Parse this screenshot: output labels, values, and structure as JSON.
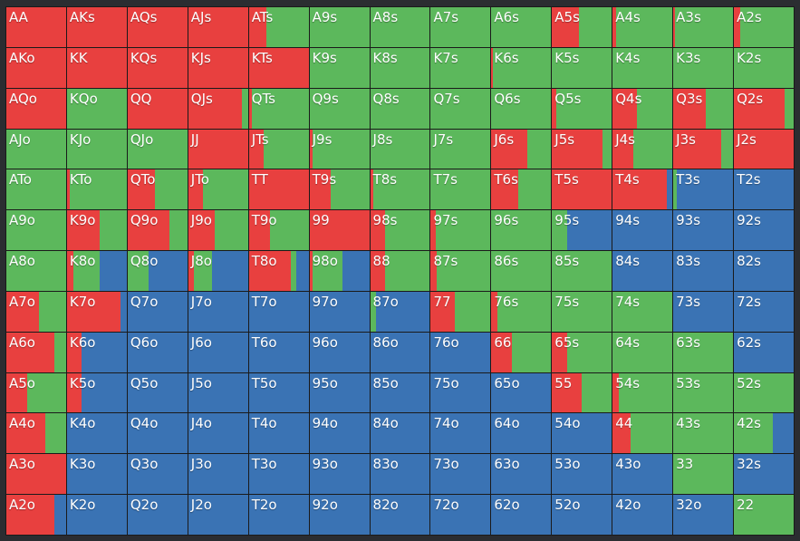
{
  "colors": {
    "raise": "#e8403f",
    "call": "#5cb85c",
    "fold": "#3a73b4"
  },
  "rows": [
    [
      [
        "AA",
        1,
        0,
        0
      ],
      [
        "AKs",
        1,
        0,
        0
      ],
      [
        "AQs",
        1,
        0,
        0
      ],
      [
        "AJs",
        1,
        0,
        0
      ],
      [
        "ATs",
        0.3,
        0.7,
        0
      ],
      [
        "A9s",
        0,
        1,
        0
      ],
      [
        "A8s",
        0,
        1,
        0
      ],
      [
        "A7s",
        0,
        1,
        0
      ],
      [
        "A6s",
        0,
        1,
        0
      ],
      [
        "A5s",
        0.45,
        0.55,
        0
      ],
      [
        "A4s",
        0.05,
        0.95,
        0
      ],
      [
        "A3s",
        0.03,
        0.97,
        0
      ],
      [
        "A2s",
        0.1,
        0.9,
        0
      ]
    ],
    [
      [
        "AKo",
        1,
        0,
        0
      ],
      [
        "KK",
        1,
        0,
        0
      ],
      [
        "KQs",
        1,
        0,
        0
      ],
      [
        "KJs",
        1,
        0,
        0
      ],
      [
        "KTs",
        1,
        0,
        0
      ],
      [
        "K9s",
        0,
        1,
        0
      ],
      [
        "K8s",
        0,
        1,
        0
      ],
      [
        "K7s",
        0,
        1,
        0
      ],
      [
        "K6s",
        0.03,
        0.97,
        0
      ],
      [
        "K5s",
        0,
        1,
        0
      ],
      [
        "K4s",
        0,
        1,
        0
      ],
      [
        "K3s",
        0,
        1,
        0
      ],
      [
        "K2s",
        0,
        1,
        0
      ]
    ],
    [
      [
        "AQo",
        1,
        0,
        0
      ],
      [
        "KQo",
        0,
        1,
        0
      ],
      [
        "QQ",
        1,
        0,
        0
      ],
      [
        "QJs",
        0.9,
        0.1,
        0
      ],
      [
        "QTs",
        0.05,
        0.95,
        0
      ],
      [
        "Q9s",
        0,
        1,
        0
      ],
      [
        "Q8s",
        0,
        1,
        0
      ],
      [
        "Q7s",
        0,
        1,
        0
      ],
      [
        "Q6s",
        0,
        1,
        0
      ],
      [
        "Q5s",
        0.07,
        0.93,
        0
      ],
      [
        "Q4s",
        0.4,
        0.6,
        0
      ],
      [
        "Q3s",
        0.55,
        0.45,
        0
      ],
      [
        "Q2s",
        0.85,
        0.15,
        0
      ]
    ],
    [
      [
        "AJo",
        0,
        1,
        0
      ],
      [
        "KJo",
        0,
        1,
        0
      ],
      [
        "QJo",
        0,
        1,
        0
      ],
      [
        "JJ",
        1,
        0,
        0
      ],
      [
        "JTs",
        0.25,
        0.75,
        0
      ],
      [
        "J9s",
        0.05,
        0.95,
        0
      ],
      [
        "J8s",
        0,
        1,
        0
      ],
      [
        "J7s",
        0,
        1,
        0
      ],
      [
        "J6s",
        0.6,
        0.4,
        0
      ],
      [
        "J5s",
        0.85,
        0.15,
        0
      ],
      [
        "J4s",
        0.35,
        0.65,
        0
      ],
      [
        "J3s",
        0.8,
        0.2,
        0
      ],
      [
        "J2s",
        1,
        0,
        0
      ]
    ],
    [
      [
        "ATo",
        0,
        1,
        0
      ],
      [
        "KTo",
        0.05,
        0.95,
        0
      ],
      [
        "QTo",
        0.45,
        0.55,
        0
      ],
      [
        "JTo",
        0.25,
        0.75,
        0
      ],
      [
        "TT",
        1,
        0,
        0
      ],
      [
        "T9s",
        0.35,
        0.65,
        0
      ],
      [
        "T8s",
        0.05,
        0.95,
        0
      ],
      [
        "T7s",
        0,
        1,
        0
      ],
      [
        "T6s",
        0.45,
        0.55,
        0
      ],
      [
        "T5s",
        1,
        0,
        0
      ],
      [
        "T4s",
        0.9,
        0,
        0.1
      ],
      [
        "T3s",
        0,
        0.06,
        0.94
      ],
      [
        "T2s",
        0,
        0,
        1
      ]
    ],
    [
      [
        "A9o",
        0,
        1,
        0
      ],
      [
        "K9o",
        0.55,
        0.45,
        0
      ],
      [
        "Q9o",
        0.7,
        0.3,
        0
      ],
      [
        "J9o",
        0.45,
        0.55,
        0
      ],
      [
        "T9o",
        0.35,
        0.65,
        0
      ],
      [
        "99",
        1,
        0,
        0
      ],
      [
        "98s",
        0.25,
        0.75,
        0
      ],
      [
        "97s",
        0.08,
        0.92,
        0
      ],
      [
        "96s",
        0,
        1,
        0
      ],
      [
        "95s",
        0,
        0.25,
        0.75
      ],
      [
        "94s",
        0,
        0,
        1
      ],
      [
        "93s",
        0,
        0,
        1
      ],
      [
        "92s",
        0,
        0,
        1
      ]
    ],
    [
      [
        "A8o",
        0,
        1,
        0
      ],
      [
        "K8o",
        0.1,
        0.45,
        0.45
      ],
      [
        "Q8o",
        0,
        0.35,
        0.65
      ],
      [
        "J8o",
        0.1,
        0.3,
        0.6
      ],
      [
        "T8o",
        0.7,
        0.1,
        0.2
      ],
      [
        "98o",
        0.05,
        0.5,
        0.45
      ],
      [
        "88",
        0.25,
        0.75,
        0
      ],
      [
        "87s",
        0.1,
        0.9,
        0
      ],
      [
        "86s",
        0,
        1,
        0
      ],
      [
        "85s",
        0,
        1,
        0
      ],
      [
        "84s",
        0,
        0,
        1
      ],
      [
        "83s",
        0,
        0,
        1
      ],
      [
        "82s",
        0,
        0,
        1
      ]
    ],
    [
      [
        "A7o",
        0.55,
        0.45,
        0
      ],
      [
        "K7o",
        0.9,
        0,
        0.1
      ],
      [
        "Q7o",
        0,
        0,
        1
      ],
      [
        "J7o",
        0,
        0,
        1
      ],
      [
        "T7o",
        0,
        0,
        1
      ],
      [
        "97o",
        0,
        0,
        1
      ],
      [
        "87o",
        0,
        0.1,
        0.9
      ],
      [
        "77",
        0.4,
        0.6,
        0
      ],
      [
        "76s",
        0.1,
        0.9,
        0
      ],
      [
        "75s",
        0,
        1,
        0
      ],
      [
        "74s",
        0,
        1,
        0
      ],
      [
        "73s",
        0,
        0,
        1
      ],
      [
        "72s",
        0,
        0,
        1
      ]
    ],
    [
      [
        "A6o",
        0.8,
        0.2,
        0
      ],
      [
        "K6o",
        0.25,
        0,
        0.75
      ],
      [
        "Q6o",
        0,
        0,
        1
      ],
      [
        "J6o",
        0,
        0,
        1
      ],
      [
        "T6o",
        0,
        0,
        1
      ],
      [
        "96o",
        0,
        0,
        1
      ],
      [
        "86o",
        0,
        0,
        1
      ],
      [
        "76o",
        0,
        0,
        1
      ],
      [
        "66",
        0.35,
        0.65,
        0
      ],
      [
        "65s",
        0.25,
        0.75,
        0
      ],
      [
        "64s",
        0,
        1,
        0
      ],
      [
        "63s",
        0,
        1,
        0
      ],
      [
        "62s",
        0,
        0,
        1
      ]
    ],
    [
      [
        "A5o",
        0.35,
        0.65,
        0
      ],
      [
        "K5o",
        0.25,
        0,
        0.75
      ],
      [
        "Q5o",
        0,
        0,
        1
      ],
      [
        "J5o",
        0,
        0,
        1
      ],
      [
        "T5o",
        0,
        0,
        1
      ],
      [
        "95o",
        0,
        0,
        1
      ],
      [
        "85o",
        0,
        0,
        1
      ],
      [
        "75o",
        0,
        0,
        1
      ],
      [
        "65o",
        0,
        0,
        1
      ],
      [
        "55",
        0.5,
        0.5,
        0
      ],
      [
        "54s",
        0.1,
        0.9,
        0
      ],
      [
        "53s",
        0,
        1,
        0
      ],
      [
        "52s",
        0,
        1,
        0
      ]
    ],
    [
      [
        "A4o",
        0.65,
        0.35,
        0
      ],
      [
        "K4o",
        0,
        0,
        1
      ],
      [
        "Q4o",
        0,
        0,
        1
      ],
      [
        "J4o",
        0,
        0,
        1
      ],
      [
        "T4o",
        0,
        0,
        1
      ],
      [
        "94o",
        0,
        0,
        1
      ],
      [
        "84o",
        0,
        0,
        1
      ],
      [
        "74o",
        0,
        0,
        1
      ],
      [
        "64o",
        0,
        0,
        1
      ],
      [
        "54o",
        0,
        0,
        1
      ],
      [
        "44",
        0.3,
        0.7,
        0
      ],
      [
        "43s",
        0,
        1,
        0
      ],
      [
        "42s",
        0,
        0.65,
        0.35
      ]
    ],
    [
      [
        "A3o",
        1,
        0,
        0
      ],
      [
        "K3o",
        0,
        0,
        1
      ],
      [
        "Q3o",
        0,
        0,
        1
      ],
      [
        "J3o",
        0,
        0,
        1
      ],
      [
        "T3o",
        0,
        0,
        1
      ],
      [
        "93o",
        0,
        0,
        1
      ],
      [
        "83o",
        0,
        0,
        1
      ],
      [
        "73o",
        0,
        0,
        1
      ],
      [
        "63o",
        0,
        0,
        1
      ],
      [
        "53o",
        0,
        0,
        1
      ],
      [
        "43o",
        0,
        0,
        1
      ],
      [
        "33",
        0,
        1,
        0
      ],
      [
        "32s",
        0,
        0,
        1
      ]
    ],
    [
      [
        "A2o",
        0.8,
        0,
        0.2
      ],
      [
        "K2o",
        0,
        0,
        1
      ],
      [
        "Q2o",
        0,
        0,
        1
      ],
      [
        "J2o",
        0,
        0,
        1
      ],
      [
        "T2o",
        0,
        0,
        1
      ],
      [
        "92o",
        0,
        0,
        1
      ],
      [
        "82o",
        0,
        0,
        1
      ],
      [
        "72o",
        0,
        0,
        1
      ],
      [
        "62o",
        0,
        0,
        1
      ],
      [
        "52o",
        0,
        0,
        1
      ],
      [
        "42o",
        0,
        0,
        1
      ],
      [
        "32o",
        0,
        0,
        1
      ],
      [
        "22",
        0,
        1,
        0
      ]
    ]
  ]
}
